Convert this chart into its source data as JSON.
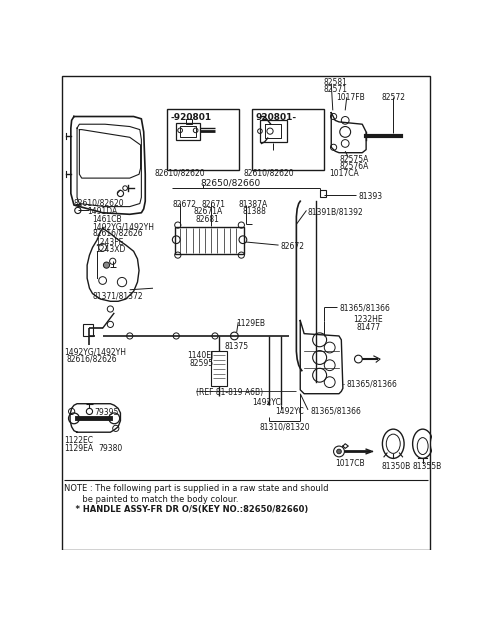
{
  "background_color": "#ffffff",
  "line_color": "#1a1a1a",
  "text_color": "#1a1a1a",
  "fig_width": 4.8,
  "fig_height": 6.18,
  "dpi": 100,
  "note_line1": "NOTE : The following part is supplied in a raw state and should",
  "note_line2": "       be painted to match the body colour.",
  "note_line3": "    * HANDLE ASSY-FR DR O/S(KEY NO.:82650/82660)"
}
